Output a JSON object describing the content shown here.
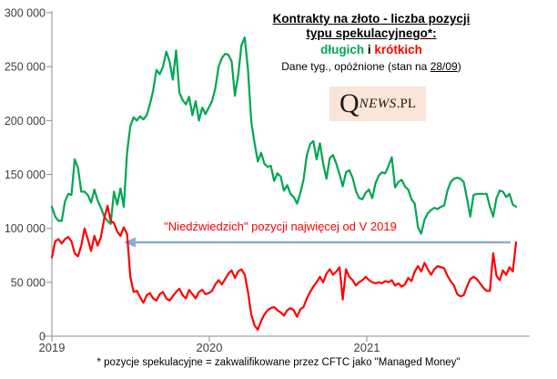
{
  "title": {
    "line1": "Kontrakty na złoto - liczba pozycji",
    "line2": "typu spekulacyjnego*:",
    "line3_long": "długich",
    "line3_sep": " i ",
    "line3_short": "krótkich",
    "subtitle_prefix": "Dane tyg.,  opóźnione (stan na ",
    "subtitle_date": "28/09",
    "subtitle_suffix": ")"
  },
  "logo": {
    "q": "Q",
    "news": "NEWS",
    "pl": ".PL"
  },
  "annotation": {
    "text": "\"Niedźwiedzich\" pozycji najwięcej od V 2019"
  },
  "footnote": "* pozycje spekulacyjne = zakwalifikowane przez CFTC jako \"Managed Money\"",
  "colors": {
    "long_line": "#00A651",
    "short_line": "#FF0000",
    "arrow": "#8EAADB",
    "axis": "#8C8C8C",
    "tick_label": "#404040",
    "logo_bg": "#FBE5D6",
    "background": "#FFFFFF"
  },
  "chart_data": {
    "type": "line",
    "title": "Kontrakty na złoto - liczba pozycji typu spekulacyjnego*: długich i krótkich",
    "subtitle": "Dane tyg., opóźnione (stan na 28/09)",
    "frequency": "weekly",
    "x_range_note": "początek 2019 do 28/09/2021",
    "x_tick_labels": [
      "2019",
      "2020",
      "2021"
    ],
    "ylim": [
      0,
      300000
    ],
    "y_ticks": [
      0,
      50000,
      100000,
      150000,
      200000,
      250000,
      300000
    ],
    "y_tick_labels": [
      "0",
      "50 000",
      "100 000",
      "150 000",
      "200 000",
      "250 000",
      "300 000"
    ],
    "grid": false,
    "legend": "encoded-in-title-colors",
    "annotation": "\"Niedźwiedzich\" pozycji najwięcej od V 2019",
    "series": [
      {
        "name": "długich (pozycje długie)",
        "color": "#00A651",
        "values": [
          120000,
          111000,
          107000,
          107000,
          125000,
          132000,
          131000,
          164000,
          156000,
          134000,
          134000,
          131000,
          124000,
          136000,
          126000,
          119000,
          111000,
          107000,
          104000,
          134000,
          122000,
          137000,
          120000,
          170000,
          195000,
          203000,
          200000,
          204000,
          201000,
          205000,
          215000,
          228000,
          247000,
          243000,
          250000,
          264000,
          255000,
          238000,
          265000,
          226000,
          219000,
          215000,
          222000,
          205000,
          218000,
          200000,
          212000,
          206000,
          212000,
          218000,
          230000,
          250000,
          258000,
          262000,
          261000,
          255000,
          223000,
          242000,
          270000,
          277000,
          247000,
          199000,
          179000,
          162000,
          170000,
          160000,
          157000,
          158000,
          144000,
          151000,
          148000,
          135000,
          140000,
          132000,
          129000,
          123000,
          133000,
          145000,
          168000,
          178000,
          181000,
          164000,
          179000,
          160000,
          146000,
          165000,
          168000,
          160000,
          150000,
          139000,
          152000,
          154000,
          147000,
          135000,
          128000,
          127000,
          133000,
          136000,
          128000,
          142000,
          149000,
          152000,
          151000,
          158000,
          166000,
          138000,
          143000,
          145000,
          139000,
          136000,
          127000,
          123000,
          101000,
          95000,
          108000,
          114000,
          117000,
          119000,
          118000,
          120000,
          121000,
          135000,
          143000,
          146000,
          147000,
          146000,
          143000,
          128000,
          111000,
          131000,
          132000,
          132000,
          132000,
          132000,
          120000,
          111000,
          128000,
          135000,
          134000,
          129000,
          132000,
          122000,
          120000
        ]
      },
      {
        "name": "krótkich (pozycje krótkie)",
        "color": "#FF0000",
        "values": [
          73000,
          88000,
          90000,
          86000,
          90000,
          92000,
          88000,
          77000,
          74000,
          84000,
          100000,
          90000,
          79000,
          93000,
          84000,
          92000,
          109000,
          121000,
          107000,
          105000,
          97000,
          93000,
          101000,
          95000,
          55000,
          41000,
          42000,
          36000,
          31000,
          38000,
          40000,
          35000,
          33000,
          39000,
          41000,
          35000,
          33000,
          37000,
          41000,
          44000,
          38000,
          35000,
          43000,
          39000,
          35000,
          41000,
          43000,
          39000,
          40000,
          42000,
          48000,
          52000,
          48000,
          53000,
          58000,
          61000,
          54000,
          60000,
          62000,
          57000,
          41000,
          20000,
          10000,
          6000,
          14000,
          20000,
          24000,
          26000,
          27000,
          24000,
          22000,
          19000,
          24000,
          26000,
          24000,
          18000,
          25000,
          27000,
          35000,
          41000,
          46000,
          50000,
          55000,
          50000,
          58000,
          62000,
          57000,
          60000,
          64000,
          34000,
          62000,
          55000,
          52000,
          47000,
          50000,
          52000,
          55000,
          52000,
          50000,
          49000,
          50000,
          49000,
          51000,
          50000,
          52000,
          47000,
          49000,
          46000,
          48000,
          54000,
          51000,
          60000,
          65000,
          60000,
          68000,
          62000,
          57000,
          62000,
          65000,
          64000,
          63000,
          56000,
          51000,
          47000,
          39000,
          37000,
          38000,
          46000,
          53000,
          55000,
          53000,
          49000,
          45000,
          42000,
          42000,
          77000,
          56000,
          52000,
          61000,
          57000,
          64000,
          60000,
          87000
        ]
      }
    ]
  }
}
